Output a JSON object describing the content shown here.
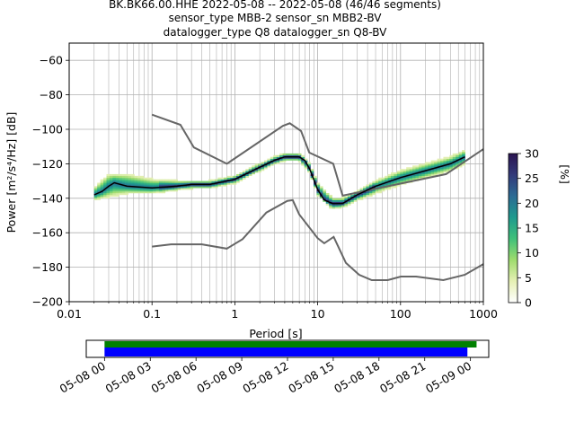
{
  "chart_data": {
    "type": "heatmap",
    "title_lines": [
      "BK.BK66.00.HHE   2022-05-08 -- 2022-05-08  (46/46 segments)",
      "sensor_type MBB-2 sensor_sn MBB2-BV",
      "datalogger_type Q8 datalogger_sn Q8-BV"
    ],
    "xlabel": "Period [s]",
    "ylabel": "Power [m²/s⁴/Hz] [dB]",
    "x_scale": "log",
    "xlim": [
      0.01,
      1000
    ],
    "ylim": [
      -200,
      -50
    ],
    "x_tick_labels": [
      "0.01",
      "0.1",
      "1",
      "10",
      "100",
      "1000"
    ],
    "y_tick_values": [
      -60,
      -80,
      -100,
      -120,
      -140,
      -160,
      -180,
      -200
    ],
    "grid": true,
    "colorbar": {
      "label": "[%]",
      "range": [
        0,
        30
      ],
      "ticks": [
        0,
        5,
        10,
        15,
        20,
        25,
        30
      ],
      "colormap": [
        "#ffffff",
        "#e6f0b4",
        "#9fdc6e",
        "#3fc07a",
        "#1e9a8e",
        "#2c6b94",
        "#333a7a",
        "#2a1450"
      ]
    },
    "noise_models": [
      {
        "role": "high",
        "color": "#666666",
        "x": [
          0.1,
          0.22,
          0.32,
          0.8,
          3.8,
          4.6,
          6.3,
          7.9,
          15.4,
          20,
          354.8,
          1000
        ],
        "y": [
          -91.5,
          -97.4,
          -110.5,
          -120,
          -98,
          -96.5,
          -101,
          -113.5,
          -120,
          -138.5,
          -126,
          -111.5
        ]
      },
      {
        "role": "low",
        "color": "#666666",
        "x": [
          0.1,
          0.17,
          0.4,
          0.8,
          1.24,
          2.4,
          4.3,
          5,
          6,
          10,
          12,
          15.6,
          21.9,
          31.6,
          45,
          70,
          101,
          154,
          328,
          600,
          1000
        ],
        "y": [
          -168,
          -166.7,
          -166.7,
          -169.2,
          -163.7,
          -148.3,
          -141.5,
          -141.1,
          -149.4,
          -163.2,
          -166.1,
          -162.4,
          -177.5,
          -184.4,
          -187.5,
          -187.5,
          -185.4,
          -185.4,
          -187.5,
          -184.4,
          -178.2
        ]
      }
    ],
    "psd_median": {
      "color": "#000000",
      "x": [
        0.02,
        0.025,
        0.03,
        0.035,
        0.05,
        0.1,
        0.2,
        0.3,
        0.5,
        1,
        2,
        3,
        4,
        5,
        6,
        7,
        8,
        10,
        12,
        15,
        20,
        30,
        50,
        100,
        200,
        400,
        600
      ],
      "y": [
        -138,
        -136,
        -133,
        -131,
        -133,
        -134,
        -133,
        -132,
        -132,
        -129,
        -122,
        -118,
        -116,
        -116,
        -116,
        -118,
        -123,
        -135,
        -141,
        -143,
        -143,
        -138,
        -133,
        -128,
        -124,
        -120,
        -116
      ]
    },
    "psd_spread": {
      "x": [
        0.02,
        0.03,
        0.05,
        0.1,
        0.2,
        0.3,
        0.5,
        1,
        2,
        3,
        4,
        5,
        6,
        8,
        10,
        15,
        20,
        30,
        50,
        100,
        200,
        400,
        600
      ],
      "low": [
        -141,
        -139,
        -137,
        -137,
        -135,
        -134,
        -134,
        -131,
        -124,
        -120,
        -118,
        -118,
        -118,
        -125,
        -138,
        -146,
        -145,
        -141,
        -137,
        -132,
        -128,
        -124,
        -120
      ],
      "high": [
        -134,
        -126,
        -126,
        -129,
        -130,
        -130,
        -130,
        -127,
        -120,
        -116,
        -114,
        -114,
        -114,
        -120,
        -131,
        -140,
        -140,
        -136,
        -130,
        -124,
        -120,
        -116,
        -112
      ]
    },
    "data_coverage": {
      "x_tick_labels": [
        "05-08 00",
        "05-08 03",
        "05-08 06",
        "05-08 09",
        "05-08 12",
        "05-08 15",
        "05-08 18",
        "05-08 21",
        "05-09 00"
      ],
      "range_hours": [
        -1.2,
        25.2
      ],
      "available": {
        "color": "#008000",
        "start_hour": 0,
        "end_hour": 24.4
      },
      "used": {
        "color": "#0000ff",
        "start_hour": 0,
        "end_hour": 23.8
      }
    }
  }
}
